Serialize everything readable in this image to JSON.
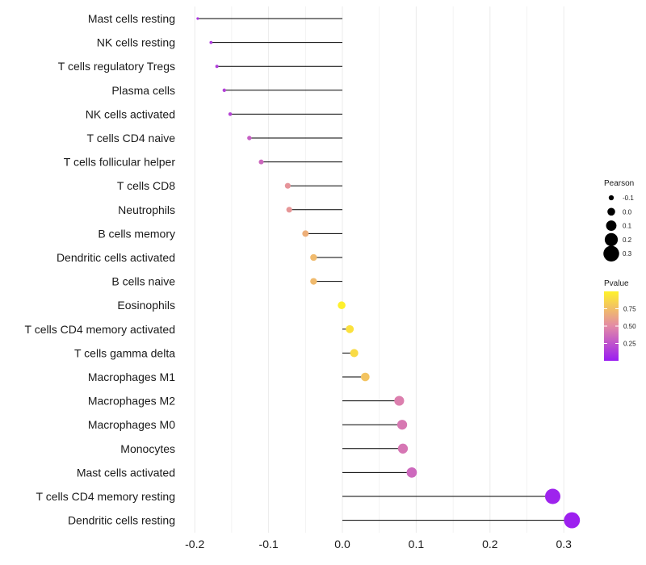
{
  "chart_data": {
    "type": "lollipop",
    "title": "",
    "xlabel": "",
    "ylabel": "",
    "xlim": [
      -0.21,
      0.33
    ],
    "x_ticks": [
      -0.2,
      -0.1,
      0.0,
      0.1,
      0.2,
      0.3
    ],
    "x_tick_labels": [
      "-0.2",
      "-0.1",
      "0.0",
      "0.1",
      "0.2",
      "0.3"
    ],
    "grid": true,
    "legend_position": "right",
    "categories": [
      "Mast cells resting",
      "NK cells resting",
      "T cells regulatory  Tregs ",
      "Plasma cells",
      "NK cells activated",
      "T cells CD4 naive",
      "T cells follicular helper",
      "T cells CD8",
      "Neutrophils",
      "B cells memory",
      "Dendritic cells activated",
      "B cells naive",
      "Eosinophils",
      "T cells CD4 memory activated",
      "T cells gamma delta",
      "Macrophages M1",
      "Macrophages M2",
      "Macrophages M0",
      "Monocytes",
      "Mast cells activated",
      "T cells CD4 memory resting",
      "Dendritic cells resting"
    ],
    "pearson": [
      -0.196,
      -0.178,
      -0.17,
      -0.16,
      -0.152,
      -0.126,
      -0.11,
      -0.074,
      -0.072,
      -0.05,
      -0.039,
      -0.039,
      -0.001,
      0.01,
      0.016,
      0.031,
      0.077,
      0.081,
      0.082,
      0.094,
      0.285,
      0.311
    ],
    "pvalue": [
      0.12,
      0.14,
      0.15,
      0.17,
      0.19,
      0.3,
      0.34,
      0.55,
      0.56,
      0.68,
      0.73,
      0.73,
      0.99,
      0.92,
      0.89,
      0.78,
      0.45,
      0.42,
      0.41,
      0.35,
      0.03,
      0.02
    ],
    "legend_size": {
      "title": "Pearson",
      "values": [
        -0.1,
        0.0,
        0.1,
        0.2,
        0.3
      ],
      "labels": [
        "-0.1",
        "0.0",
        "0.1",
        "0.2",
        "0.3"
      ]
    },
    "legend_color": {
      "title": "Pvalue",
      "range": [
        0.0,
        1.0
      ],
      "breaks": [
        0.75,
        0.5,
        0.25
      ],
      "labels": [
        "0.75",
        "0.50",
        "0.25"
      ],
      "low_color": "#9a1cf2",
      "mid_color": "#e38aa6",
      "high_color": "#fff22a"
    },
    "colors": {
      "stem": "#000000",
      "grid": "#ebebeb"
    }
  }
}
